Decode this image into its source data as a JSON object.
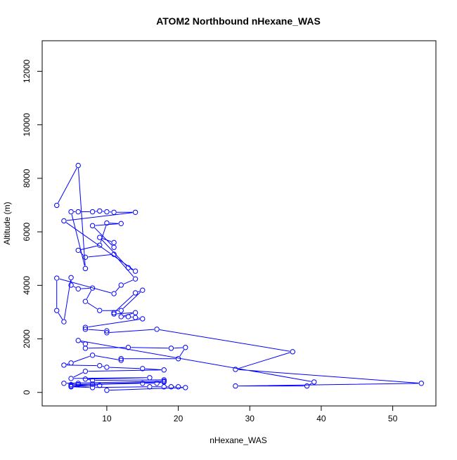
{
  "chart_data": {
    "type": "line",
    "title": "ATOM2 Northbound nHexane_WAS",
    "x_label": "nHexane_WAS",
    "y_label": "Altitude (m)",
    "color": "#0000ff",
    "x": [
      3,
      6,
      7,
      5,
      6,
      8,
      9,
      10,
      11,
      14,
      4,
      14,
      13,
      9,
      11,
      11,
      8,
      12,
      10,
      9,
      6,
      7,
      11,
      14,
      12,
      11,
      3,
      3,
      4,
      5,
      5,
      6,
      8,
      7,
      9,
      12,
      15,
      14,
      11,
      11,
      14,
      12,
      13,
      14,
      15,
      7,
      7,
      10,
      10,
      17,
      36,
      28,
      54,
      28,
      38,
      39,
      6,
      7,
      7,
      13,
      19,
      21,
      20,
      12,
      12,
      8,
      5,
      4,
      9,
      10,
      15,
      18,
      7,
      5,
      16,
      7,
      8,
      18,
      18,
      4,
      6,
      6,
      15,
      17,
      18,
      5,
      8,
      5,
      9,
      5,
      8,
      16,
      18,
      19,
      20,
      21,
      10
    ],
    "values": [
      6990,
      8480,
      4630,
      6750,
      6750,
      6750,
      6780,
      6750,
      6730,
      6730,
      6410,
      4530,
      4660,
      5790,
      5600,
      5420,
      6230,
      6310,
      6330,
      5500,
      5310,
      5050,
      5160,
      4240,
      4010,
      3690,
      4270,
      3060,
      2640,
      4290,
      4010,
      3870,
      3900,
      3400,
      3060,
      3060,
      3820,
      3720,
      2980,
      2930,
      2980,
      2830,
      2830,
      2800,
      2750,
      2430,
      2360,
      2300,
      2230,
      2360,
      1520,
      860,
      340,
      240,
      240,
      390,
      1940,
      1810,
      1650,
      1680,
      1650,
      1680,
      1260,
      1260,
      1200,
      1390,
      1100,
      1020,
      1000,
      940,
      890,
      840,
      790,
      520,
      550,
      500,
      450,
      470,
      420,
      340,
      340,
      290,
      340,
      340,
      390,
      290,
      310,
      240,
      260,
      210,
      180,
      210,
      210,
      210,
      210,
      180,
      80
    ],
    "xlim": [
      0.96,
      56.04
    ],
    "ylim": [
      -505,
      13141
    ],
    "xticks": [
      10,
      20,
      30,
      40,
      50
    ],
    "yticks": [
      0,
      2000,
      4000,
      6000,
      8000,
      10000,
      12000
    ]
  }
}
